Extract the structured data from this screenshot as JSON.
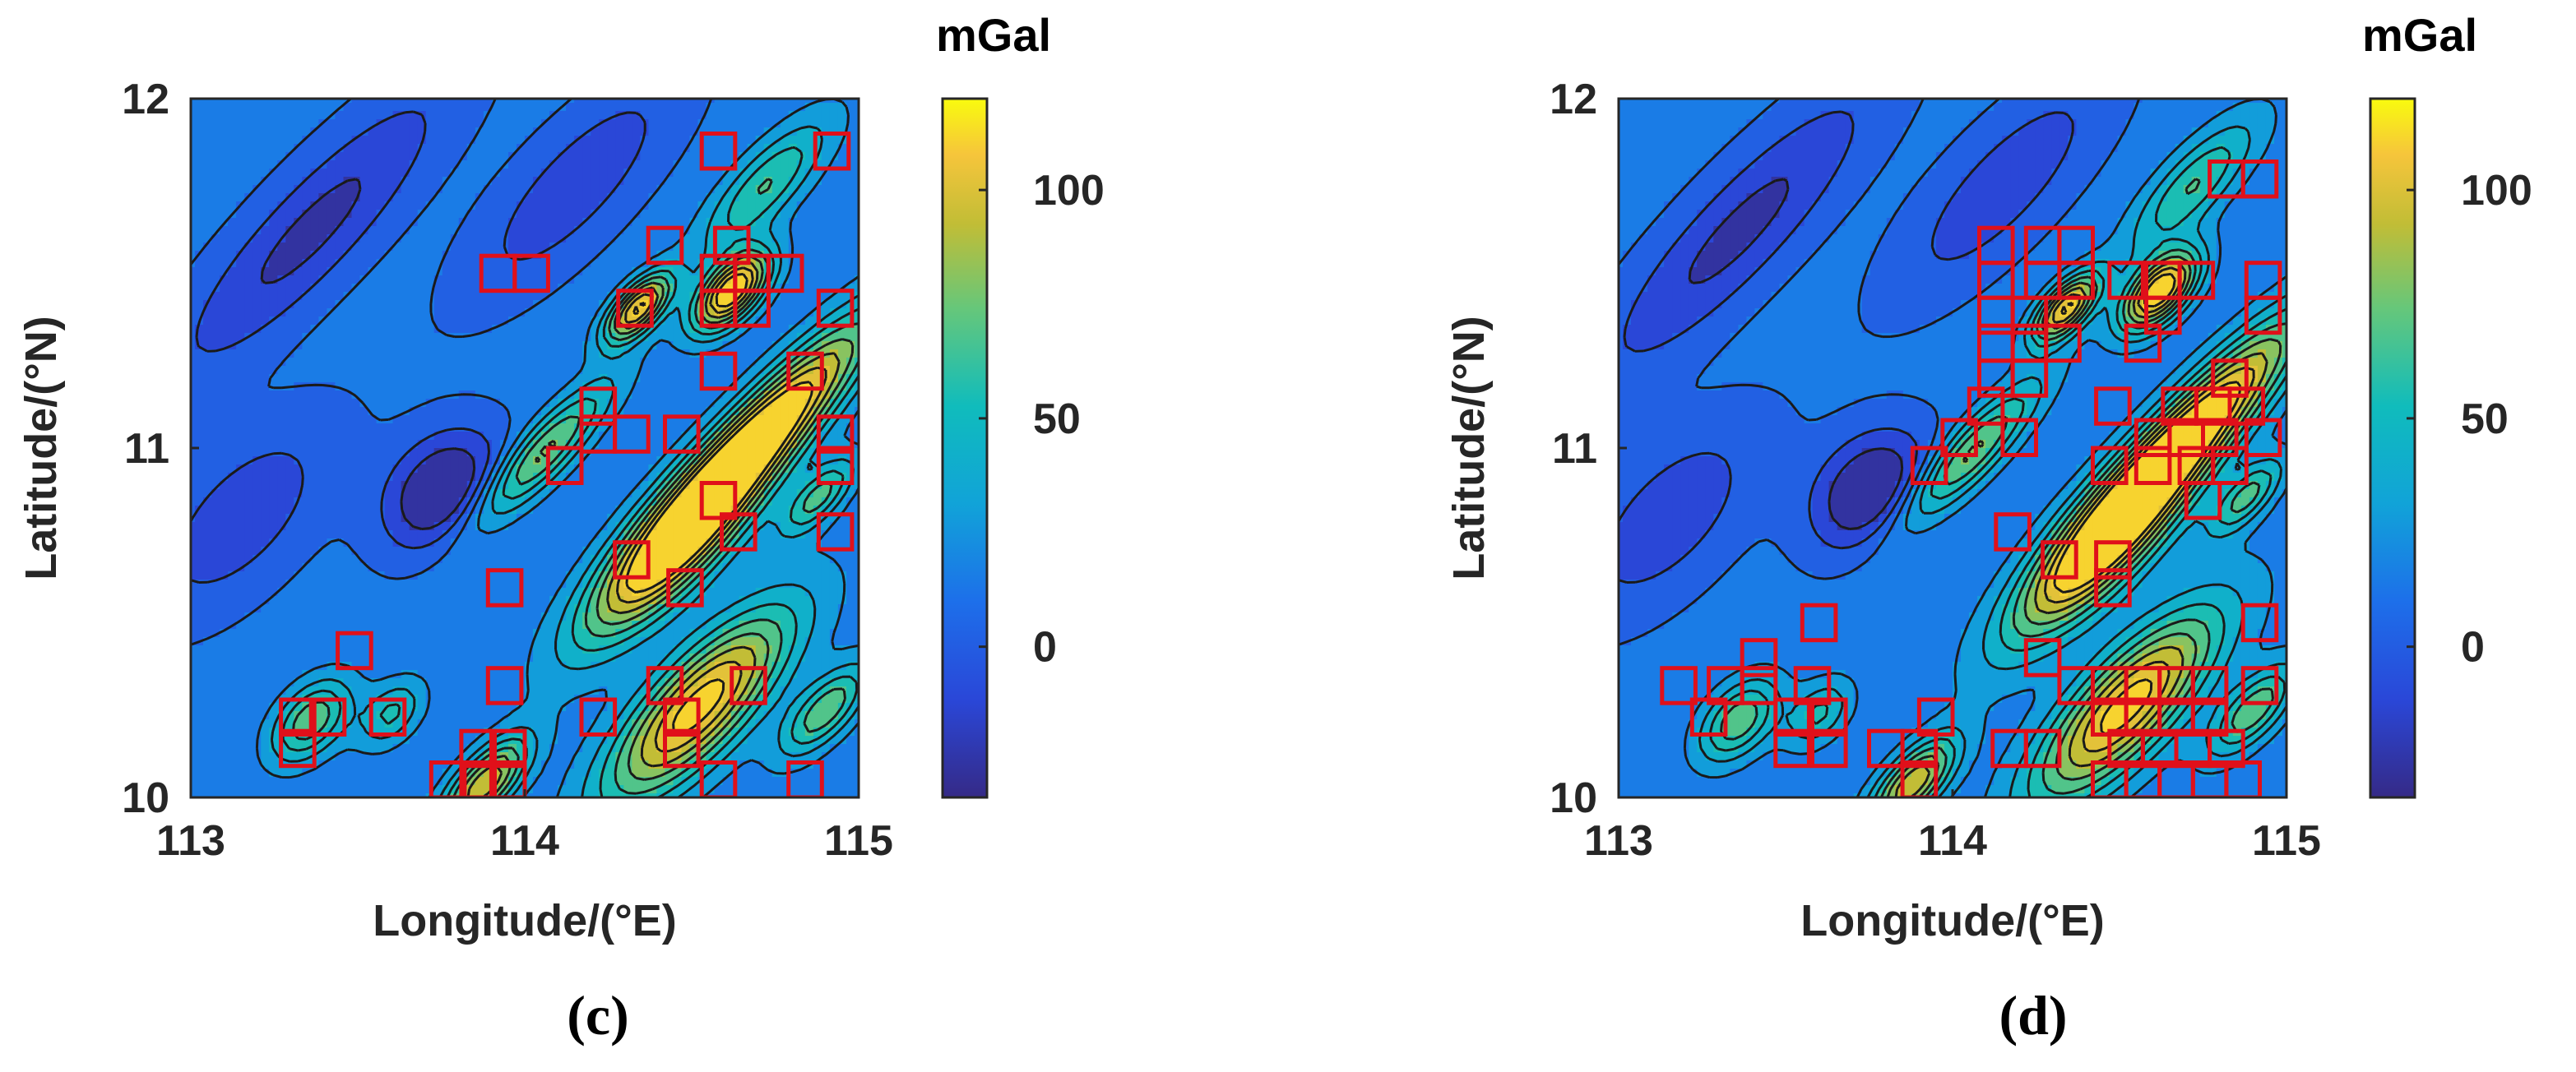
{
  "figure": {
    "panels": [
      {
        "label": "(c)"
      },
      {
        "label": "(d)"
      }
    ]
  },
  "chart_data": [
    {
      "type": "heatmap",
      "panel_label": "(c)",
      "xlabel": "Longitude/(°E)",
      "ylabel": "Latitude/(°N)",
      "xlim": [
        113,
        115
      ],
      "ylim": [
        10,
        12
      ],
      "xticks": [
        "113",
        "114",
        "115"
      ],
      "yticks": [
        "10",
        "11",
        "12"
      ],
      "colorbar": {
        "title": "mGal",
        "range": [
          -33,
          120
        ],
        "ticks": [
          "0",
          "50",
          "100"
        ],
        "colormap": "parula"
      },
      "field_features": [
        {
          "lon": 114.62,
          "lat": 11.45,
          "value": 118
        },
        {
          "lon": 114.34,
          "lat": 11.4,
          "value": 95
        },
        {
          "lon": 114.72,
          "lat": 11.05,
          "value": 115
        },
        {
          "lon": 114.45,
          "lat": 10.72,
          "value": 112
        },
        {
          "lon": 114.05,
          "lat": 10.98,
          "value": 70
        },
        {
          "lon": 114.45,
          "lat": 10.24,
          "value": 108
        },
        {
          "lon": 113.88,
          "lat": 10.04,
          "value": 85
        },
        {
          "lon": 113.36,
          "lat": 10.22,
          "value": 60
        },
        {
          "lon": 114.88,
          "lat": 10.86,
          "value": 55
        },
        {
          "lon": 114.7,
          "lat": 11.75,
          "value": 45
        },
        {
          "lon": 113.74,
          "lat": 10.88,
          "value": -30
        },
        {
          "lon": 113.36,
          "lat": 11.6,
          "value": -22
        },
        {
          "lon": 113.12,
          "lat": 10.8,
          "value": -20
        }
      ],
      "highlighted_cells": [
        [
          114.58,
          11.85
        ],
        [
          114.92,
          11.85
        ],
        [
          114.42,
          11.58
        ],
        [
          114.62,
          11.58
        ],
        [
          113.92,
          11.5
        ],
        [
          114.02,
          11.5
        ],
        [
          114.58,
          11.5
        ],
        [
          114.68,
          11.5
        ],
        [
          114.78,
          11.5
        ],
        [
          114.33,
          11.4
        ],
        [
          114.58,
          11.4
        ],
        [
          114.68,
          11.4
        ],
        [
          114.93,
          11.4
        ],
        [
          114.84,
          11.22
        ],
        [
          114.58,
          11.22
        ],
        [
          114.22,
          11.12
        ],
        [
          114.22,
          11.04
        ],
        [
          114.32,
          11.04
        ],
        [
          114.47,
          11.04
        ],
        [
          114.12,
          10.95
        ],
        [
          114.93,
          11.04
        ],
        [
          114.93,
          10.95
        ],
        [
          114.58,
          10.85
        ],
        [
          114.64,
          10.76
        ],
        [
          114.93,
          10.76
        ],
        [
          114.32,
          10.68
        ],
        [
          113.94,
          10.6
        ],
        [
          114.48,
          10.6
        ],
        [
          113.49,
          10.42
        ],
        [
          113.94,
          10.32
        ],
        [
          114.42,
          10.32
        ],
        [
          114.67,
          10.32
        ],
        [
          113.32,
          10.23
        ],
        [
          113.41,
          10.23
        ],
        [
          113.59,
          10.23
        ],
        [
          114.22,
          10.23
        ],
        [
          114.47,
          10.23
        ],
        [
          113.32,
          10.14
        ],
        [
          113.86,
          10.14
        ],
        [
          113.95,
          10.14
        ],
        [
          114.47,
          10.14
        ],
        [
          113.77,
          10.05
        ],
        [
          113.86,
          10.05
        ],
        [
          113.95,
          10.05
        ],
        [
          114.58,
          10.05
        ],
        [
          114.84,
          10.05
        ]
      ]
    },
    {
      "type": "heatmap",
      "panel_label": "(d)",
      "xlabel": "Longitude/(°E)",
      "ylabel": "Latitude/(°N)",
      "xlim": [
        113,
        115
      ],
      "ylim": [
        10,
        12
      ],
      "xticks": [
        "113",
        "114",
        "115"
      ],
      "yticks": [
        "10",
        "11",
        "12"
      ],
      "colorbar": {
        "title": "mGal",
        "range": [
          -33,
          120
        ],
        "ticks": [
          "0",
          "50",
          "100"
        ],
        "colormap": "parula"
      },
      "highlighted_cells": [
        [
          114.82,
          11.77
        ],
        [
          114.92,
          11.77
        ],
        [
          114.13,
          11.58
        ],
        [
          114.27,
          11.58
        ],
        [
          114.37,
          11.58
        ],
        [
          114.13,
          11.48
        ],
        [
          114.27,
          11.48
        ],
        [
          114.37,
          11.48
        ],
        [
          114.52,
          11.48
        ],
        [
          114.63,
          11.48
        ],
        [
          114.73,
          11.48
        ],
        [
          114.93,
          11.48
        ],
        [
          114.13,
          11.38
        ],
        [
          114.23,
          11.38
        ],
        [
          114.63,
          11.38
        ],
        [
          114.93,
          11.38
        ],
        [
          114.13,
          11.3
        ],
        [
          114.23,
          11.3
        ],
        [
          114.33,
          11.3
        ],
        [
          114.57,
          11.3
        ],
        [
          114.13,
          11.2
        ],
        [
          114.23,
          11.2
        ],
        [
          114.83,
          11.2
        ],
        [
          114.1,
          11.12
        ],
        [
          114.48,
          11.12
        ],
        [
          114.68,
          11.12
        ],
        [
          114.78,
          11.12
        ],
        [
          114.88,
          11.12
        ],
        [
          114.02,
          11.03
        ],
        [
          114.2,
          11.03
        ],
        [
          114.6,
          11.03
        ],
        [
          114.7,
          11.03
        ],
        [
          114.8,
          11.03
        ],
        [
          114.93,
          11.03
        ],
        [
          113.93,
          10.95
        ],
        [
          114.47,
          10.95
        ],
        [
          114.6,
          10.95
        ],
        [
          114.73,
          10.95
        ],
        [
          114.83,
          10.95
        ],
        [
          114.75,
          10.85
        ],
        [
          114.18,
          10.76
        ],
        [
          114.32,
          10.68
        ],
        [
          114.48,
          10.68
        ],
        [
          114.48,
          10.6
        ],
        [
          113.6,
          10.5
        ],
        [
          114.92,
          10.5
        ],
        [
          113.42,
          10.4
        ],
        [
          114.27,
          10.4
        ],
        [
          113.18,
          10.32
        ],
        [
          113.32,
          10.32
        ],
        [
          113.42,
          10.32
        ],
        [
          113.58,
          10.32
        ],
        [
          114.37,
          10.32
        ],
        [
          114.47,
          10.32
        ],
        [
          114.57,
          10.32
        ],
        [
          114.67,
          10.32
        ],
        [
          114.77,
          10.32
        ],
        [
          114.92,
          10.32
        ],
        [
          113.27,
          10.23
        ],
        [
          113.52,
          10.23
        ],
        [
          113.63,
          10.23
        ],
        [
          113.95,
          10.23
        ],
        [
          114.47,
          10.23
        ],
        [
          114.57,
          10.23
        ],
        [
          114.67,
          10.23
        ],
        [
          114.77,
          10.23
        ],
        [
          114.17,
          10.14
        ],
        [
          114.27,
          10.14
        ],
        [
          114.52,
          10.14
        ],
        [
          114.62,
          10.14
        ],
        [
          114.72,
          10.14
        ],
        [
          114.82,
          10.14
        ],
        [
          113.52,
          10.14
        ],
        [
          113.63,
          10.14
        ],
        [
          113.8,
          10.14
        ],
        [
          113.9,
          10.14
        ],
        [
          113.9,
          10.05
        ],
        [
          114.47,
          10.05
        ],
        [
          114.57,
          10.05
        ],
        [
          114.67,
          10.05
        ],
        [
          114.77,
          10.05
        ],
        [
          114.87,
          10.05
        ]
      ]
    }
  ]
}
